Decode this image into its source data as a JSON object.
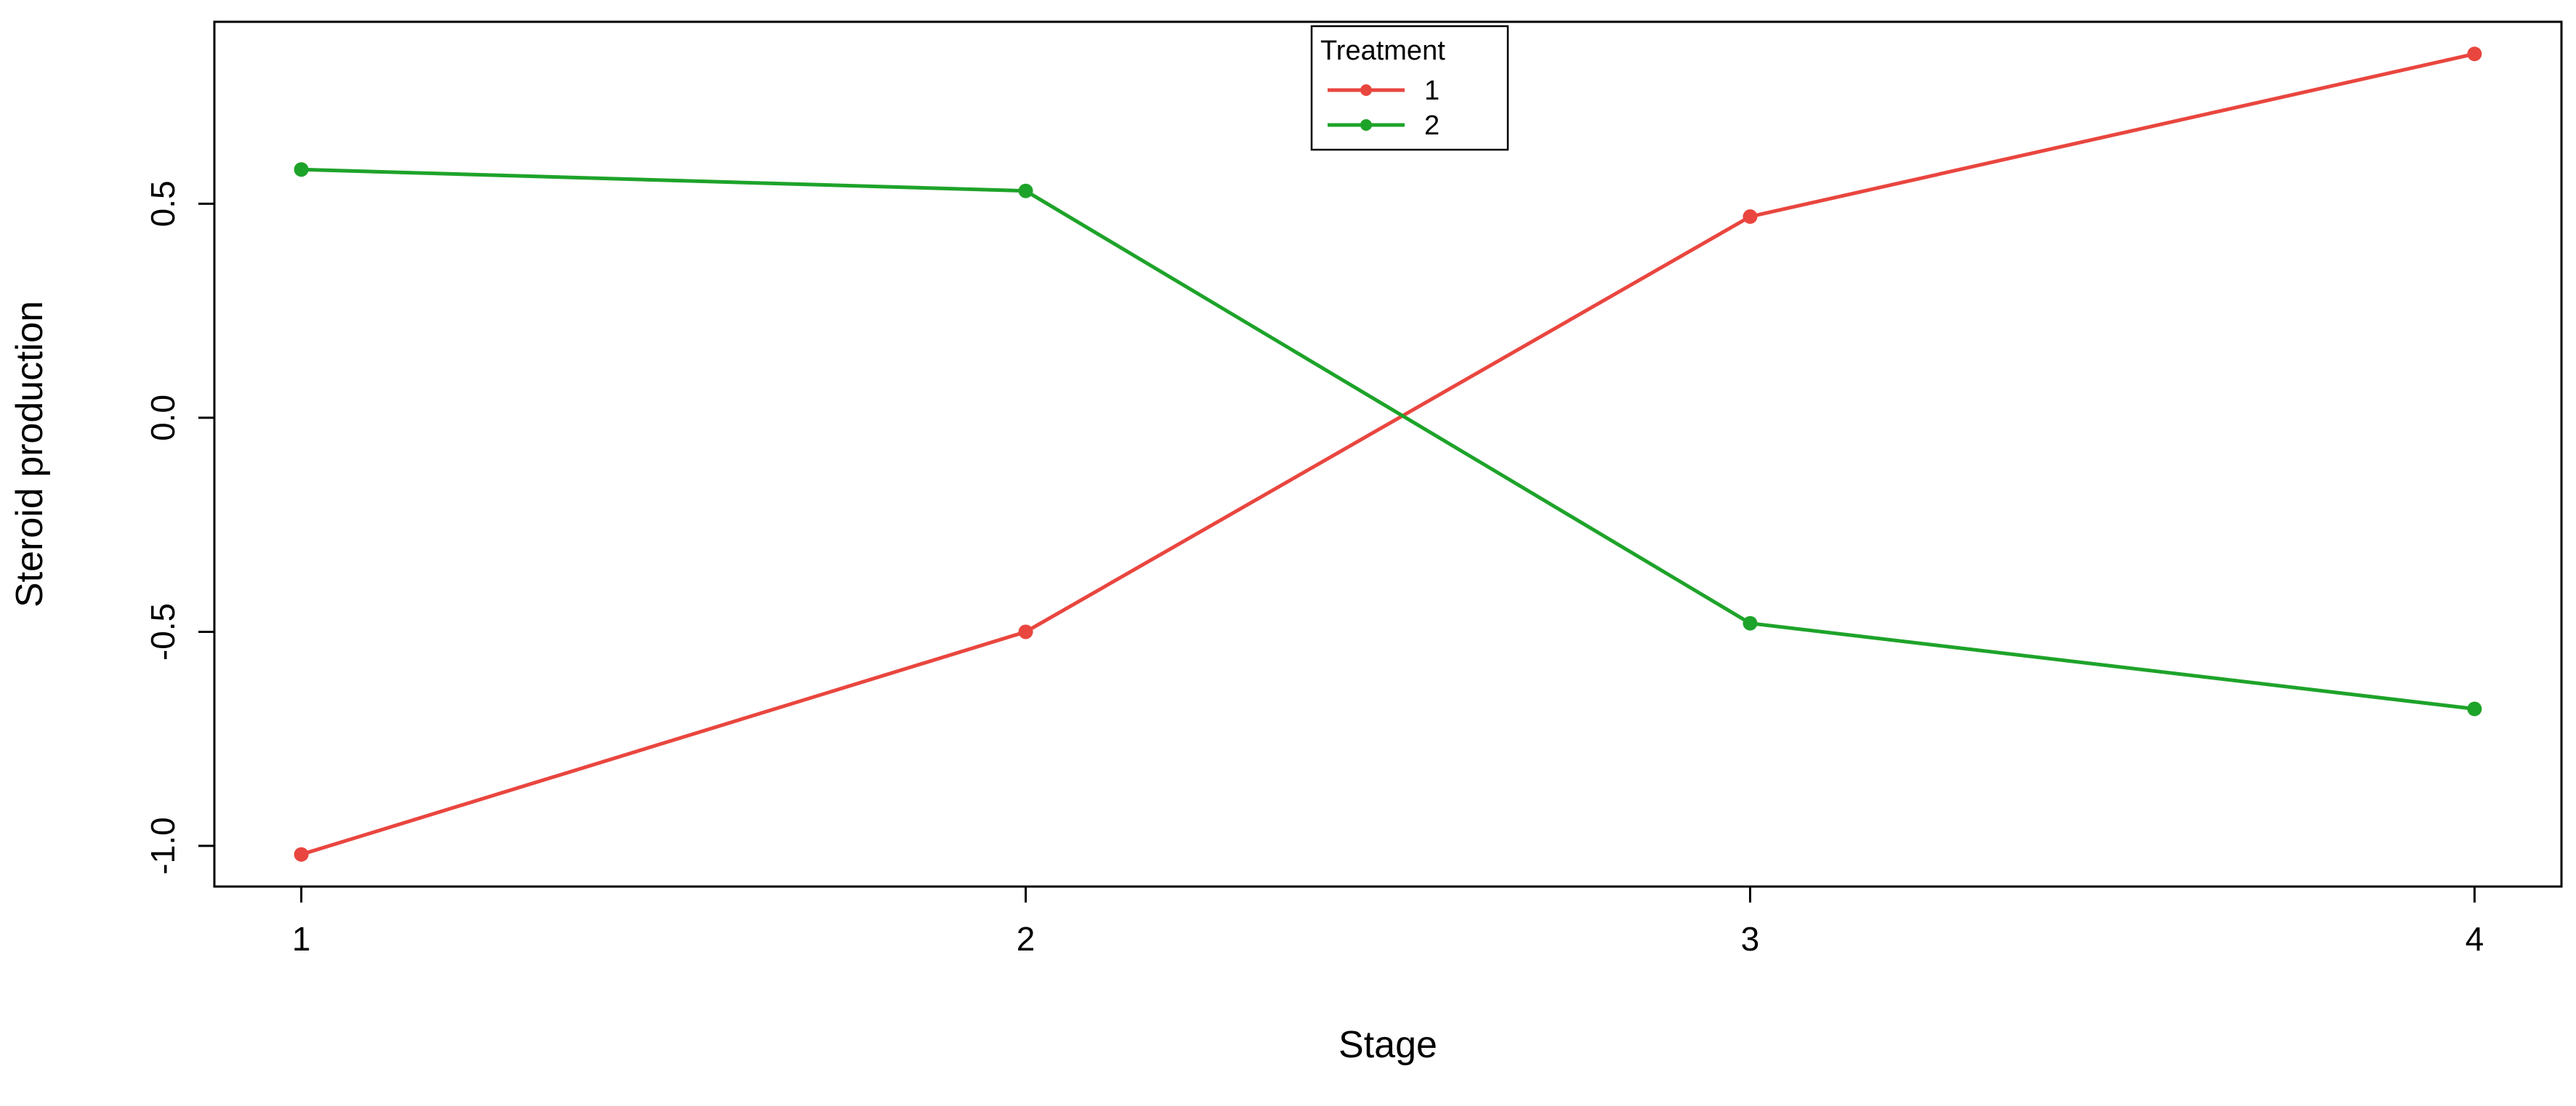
{
  "chart_data": {
    "type": "line",
    "x": [
      1,
      2,
      3,
      4
    ],
    "xtick_labels": [
      "1",
      "2",
      "3",
      "4"
    ],
    "xticks": [
      1,
      2,
      3,
      4
    ],
    "ytick_labels": [
      "-1.0",
      "-0.5",
      "0.0",
      "0.5"
    ],
    "yticks": [
      -1.0,
      -0.5,
      0.0,
      0.5
    ],
    "xlim": [
      0.88,
      4.12
    ],
    "ylim": [
      -1.095,
      0.925
    ],
    "xlabel": "Stage",
    "ylabel": "Steroid production",
    "grid": false,
    "legend": {
      "title": "Treatment",
      "position": "top-center"
    },
    "series": [
      {
        "name": "1",
        "color": "#e9463f",
        "values": [
          -1.02,
          -0.5,
          0.47,
          0.85
        ]
      },
      {
        "name": "2",
        "color": "#1ea32a",
        "values": [
          0.58,
          0.53,
          -0.48,
          -0.68
        ]
      }
    ]
  }
}
